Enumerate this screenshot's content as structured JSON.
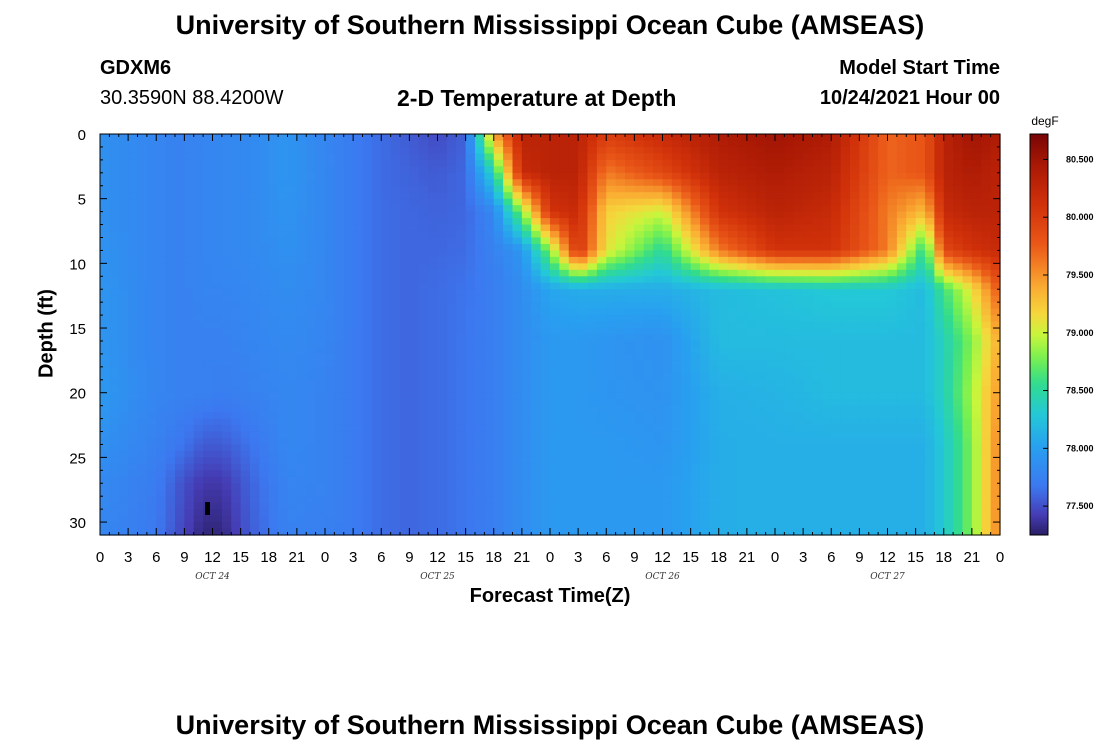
{
  "header": {
    "title": "University of Southern Mississippi Ocean Cube (AMSEAS)",
    "station_id": "GDXM6",
    "station_coords": "30.3590N  88.4200W",
    "subtitle": "2-D Temperature at Depth",
    "model_start_label": "Model Start Time",
    "model_start_value": "10/24/2021 Hour 00",
    "repeat_title": "University of Southern Mississippi Ocean Cube (AMSEAS)"
  },
  "chart_data": {
    "type": "heatmap",
    "title": "2-D Temperature at Depth",
    "xlabel": "Forecast Time(Z)",
    "ylabel": "Depth (ft)",
    "x_unit": "hours since model start",
    "xlim": [
      0,
      96
    ],
    "ylim": [
      0,
      31
    ],
    "y_inverted": true,
    "x_tick_labels": [
      "0",
      "3",
      "6",
      "9",
      "12",
      "15",
      "18",
      "21",
      "0",
      "3",
      "6",
      "9",
      "12",
      "15",
      "18",
      "21",
      "0",
      "3",
      "6",
      "9",
      "12",
      "15",
      "18",
      "21",
      "0",
      "3",
      "6",
      "9",
      "12",
      "15",
      "18",
      "21",
      "0"
    ],
    "date_labels": [
      {
        "label": "OCT 24",
        "hour": 12
      },
      {
        "label": "OCT 25",
        "hour": 36
      },
      {
        "label": "OCT 26",
        "hour": 60
      },
      {
        "label": "OCT 27",
        "hour": 84
      }
    ],
    "y_ticks": [
      0,
      5,
      10,
      15,
      20,
      25,
      30
    ],
    "colorbar": {
      "unit": "degF",
      "min": 77.25,
      "max": 80.72,
      "tick_values": [
        77.5,
        78.0,
        78.5,
        79.0,
        79.5,
        80.0,
        80.5
      ],
      "tick_labels": [
        "77.500",
        "78.000",
        "78.500",
        "79.000",
        "79.500",
        "80.000",
        "80.500"
      ]
    },
    "grid_hours": [
      0,
      6,
      9,
      11,
      13,
      16,
      20,
      24,
      27,
      30,
      33,
      36,
      39,
      42,
      45,
      48,
      51,
      54,
      60,
      66,
      72,
      78,
      84,
      88,
      90,
      93,
      96
    ],
    "grid_depths": [
      0,
      3,
      6,
      9,
      12,
      16,
      20,
      24,
      27,
      31
    ],
    "values": [
      [
        77.88,
        77.78,
        77.75,
        77.78,
        77.8,
        77.82,
        77.92,
        77.78,
        77.7,
        77.62,
        77.55,
        77.48,
        77.58,
        79.4,
        80.3,
        80.3,
        80.3,
        80.0,
        80.2,
        80.4,
        80.5,
        80.4,
        79.7,
        79.8,
        80.3,
        80.5,
        80.4
      ],
      [
        77.88,
        77.78,
        77.75,
        77.78,
        77.8,
        77.82,
        77.92,
        77.8,
        77.7,
        77.62,
        77.58,
        77.55,
        77.6,
        78.4,
        80.2,
        80.3,
        80.3,
        79.6,
        79.9,
        80.3,
        80.4,
        80.3,
        79.7,
        79.8,
        80.3,
        80.4,
        80.3
      ],
      [
        77.88,
        77.78,
        77.75,
        77.78,
        77.8,
        77.82,
        77.9,
        77.8,
        77.7,
        77.62,
        77.6,
        77.58,
        77.6,
        77.8,
        78.8,
        80.1,
        80.2,
        79.2,
        79.0,
        80.1,
        80.3,
        80.2,
        79.6,
        79.3,
        80.2,
        80.3,
        80.3
      ],
      [
        77.9,
        77.78,
        77.75,
        77.78,
        77.8,
        77.82,
        77.88,
        77.8,
        77.7,
        77.62,
        77.6,
        77.6,
        77.62,
        77.75,
        77.92,
        78.8,
        80.1,
        79.1,
        78.5,
        79.6,
        80.1,
        80.1,
        79.6,
        78.5,
        79.9,
        80.1,
        80.2
      ],
      [
        77.92,
        77.78,
        77.75,
        77.78,
        77.78,
        77.8,
        77.85,
        77.8,
        77.7,
        77.62,
        77.6,
        77.62,
        77.65,
        77.72,
        77.85,
        78.05,
        78.1,
        78.1,
        78.1,
        78.2,
        78.25,
        78.3,
        78.3,
        78.2,
        78.6,
        79.1,
        79.8
      ],
      [
        77.92,
        77.78,
        77.75,
        77.75,
        77.75,
        77.78,
        77.82,
        77.78,
        77.7,
        77.62,
        77.6,
        77.62,
        77.66,
        77.72,
        77.85,
        77.95,
        77.95,
        77.92,
        77.88,
        78.2,
        78.2,
        78.2,
        78.2,
        78.2,
        78.4,
        78.8,
        79.4
      ],
      [
        77.95,
        77.78,
        77.75,
        77.75,
        77.72,
        77.75,
        77.8,
        77.76,
        77.7,
        77.62,
        77.6,
        77.62,
        77.66,
        77.72,
        77.85,
        77.95,
        77.95,
        77.92,
        77.9,
        78.12,
        78.15,
        78.2,
        78.2,
        78.2,
        78.4,
        78.9,
        79.5
      ],
      [
        77.88,
        77.75,
        77.65,
        77.55,
        77.55,
        77.65,
        77.8,
        77.76,
        77.7,
        77.62,
        77.6,
        77.62,
        77.66,
        77.72,
        77.85,
        77.95,
        77.95,
        77.95,
        77.92,
        78.1,
        78.12,
        78.12,
        78.12,
        78.12,
        78.3,
        78.8,
        79.6
      ],
      [
        77.82,
        77.7,
        77.5,
        77.4,
        77.4,
        77.58,
        77.78,
        77.76,
        77.7,
        77.62,
        77.6,
        77.62,
        77.66,
        77.72,
        77.85,
        77.95,
        77.95,
        77.95,
        77.95,
        78.1,
        78.12,
        78.12,
        78.12,
        78.12,
        78.3,
        78.8,
        79.6
      ],
      [
        77.8,
        77.68,
        77.45,
        77.3,
        77.3,
        77.55,
        77.75,
        77.74,
        77.7,
        77.62,
        77.6,
        77.62,
        77.66,
        77.72,
        77.85,
        77.95,
        77.95,
        77.95,
        77.95,
        78.1,
        78.12,
        78.12,
        78.12,
        78.12,
        78.3,
        78.8,
        79.6
      ]
    ]
  }
}
